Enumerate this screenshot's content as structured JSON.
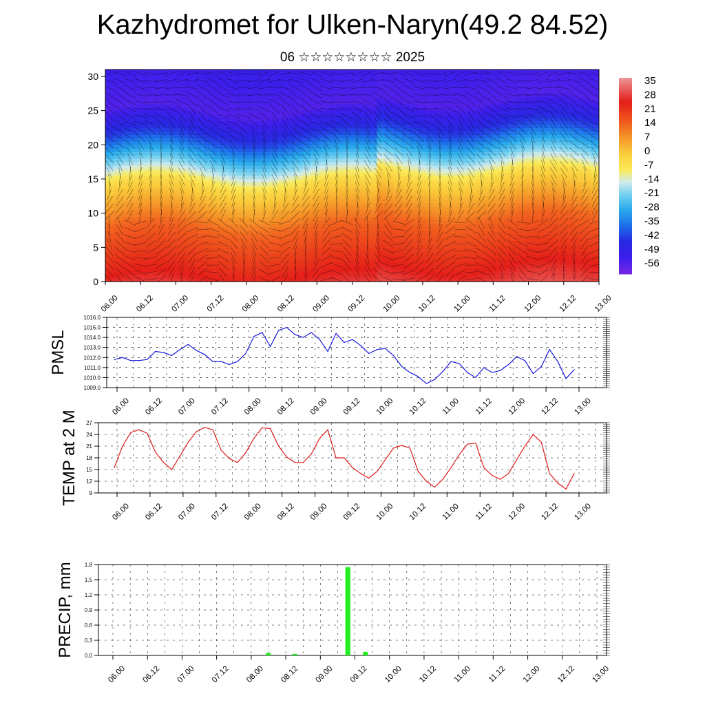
{
  "title": "Kazhydromet for Ulken-Naryn(49.2 84.52)",
  "subtitle": "06 ☆☆☆☆☆☆☆☆ 2025",
  "time_labels": [
    "06.00",
    "06.12",
    "07.00",
    "07.12",
    "08.00",
    "08.12",
    "09.00",
    "09.12",
    "10.00",
    "10.12",
    "11.00",
    "11.12",
    "12.00",
    "12.12",
    "13.00"
  ],
  "chart_data": [
    {
      "type": "heatmap",
      "name": "cross-section",
      "y_ticks": [
        0,
        5,
        10,
        15,
        20,
        25,
        30
      ],
      "ylim": [
        0,
        31
      ],
      "colorbar": {
        "labels": [
          "35",
          "28",
          "21",
          "14",
          "7",
          "0",
          "-7",
          "-14",
          "-21",
          "-28",
          "-35",
          "-42",
          "-49",
          "-56"
        ],
        "range": [
          -60,
          38
        ]
      },
      "colors": {
        "warm": "#e8201a",
        "orange": "#f5962a",
        "yellow": "#f7e04a",
        "cyan": "#2ab4ea",
        "blue": "#2a2ae8",
        "violet": "#7a2ae6"
      }
    },
    {
      "type": "line",
      "ylabel": "PMSL",
      "y_ticks": [
        "1009.0",
        "1010.0",
        "1011.0",
        "1012.0",
        "1013.0",
        "1014.0",
        "1015.0",
        "1016.0"
      ],
      "ylim": [
        1009,
        1016
      ],
      "color": "#1a1ae0",
      "values": [
        1011.8,
        1012.0,
        1011.7,
        1011.7,
        1011.8,
        1012.6,
        1012.5,
        1012.2,
        1012.8,
        1013.3,
        1012.7,
        1012.3,
        1011.6,
        1011.6,
        1011.3,
        1011.6,
        1012.4,
        1014.1,
        1014.5,
        1013.1,
        1014.7,
        1015.0,
        1014.3,
        1014.0,
        1014.5,
        1013.8,
        1012.6,
        1014.4,
        1013.5,
        1013.8,
        1013.2,
        1012.4,
        1012.8,
        1012.9,
        1012.2,
        1011.1,
        1010.5,
        1010.1,
        1009.4,
        1009.8,
        1010.6,
        1011.6,
        1011.4,
        1010.5,
        1010.0,
        1011.0,
        1010.5,
        1010.7,
        1011.3,
        1012.1,
        1011.7,
        1010.4,
        1011.1,
        1012.8,
        1011.6,
        1009.9,
        1010.8
      ]
    },
    {
      "type": "line",
      "ylabel": "TEMP at 2 M",
      "y_ticks": [
        "9",
        "12",
        "15",
        "18",
        "21",
        "24",
        "27"
      ],
      "ylim": [
        9,
        27
      ],
      "color": "#e01a1a",
      "values": [
        15.5,
        21.0,
        24.5,
        25.2,
        24.3,
        19.5,
        16.8,
        15.0,
        18.5,
        22.0,
        24.7,
        25.8,
        25.2,
        20.0,
        17.8,
        16.8,
        19.3,
        23.0,
        25.7,
        25.5,
        21.0,
        18.2,
        16.8,
        16.8,
        19.0,
        23.0,
        25.2,
        18.0,
        18.0,
        15.5,
        14.0,
        12.8,
        14.5,
        17.5,
        20.5,
        21.2,
        20.5,
        14.5,
        12.0,
        10.5,
        12.5,
        15.5,
        18.8,
        21.5,
        21.8,
        15.5,
        13.5,
        12.5,
        14.0,
        17.5,
        21.0,
        24.0,
        22.0,
        14.0,
        11.5,
        10.0,
        14.0
      ]
    },
    {
      "type": "bar",
      "ylabel": "PRECIP, mm",
      "y_ticks": [
        "0.0",
        "0.3",
        "0.6",
        "0.9",
        "1.2",
        "1.5",
        "1.8"
      ],
      "ylim": [
        0,
        1.8
      ],
      "color": "#22ee22",
      "values": [
        0,
        0,
        0,
        0,
        0,
        0,
        0,
        0,
        0,
        0,
        0,
        0,
        0,
        0,
        0,
        0,
        0,
        0,
        0.05,
        0,
        0,
        0.03,
        0,
        0,
        0,
        0,
        0,
        1.75,
        0,
        0.07,
        0,
        0,
        0,
        0,
        0,
        0,
        0,
        0,
        0,
        0,
        0,
        0,
        0,
        0,
        0,
        0,
        0,
        0,
        0,
        0,
        0,
        0,
        0,
        0,
        0,
        0
      ]
    }
  ]
}
